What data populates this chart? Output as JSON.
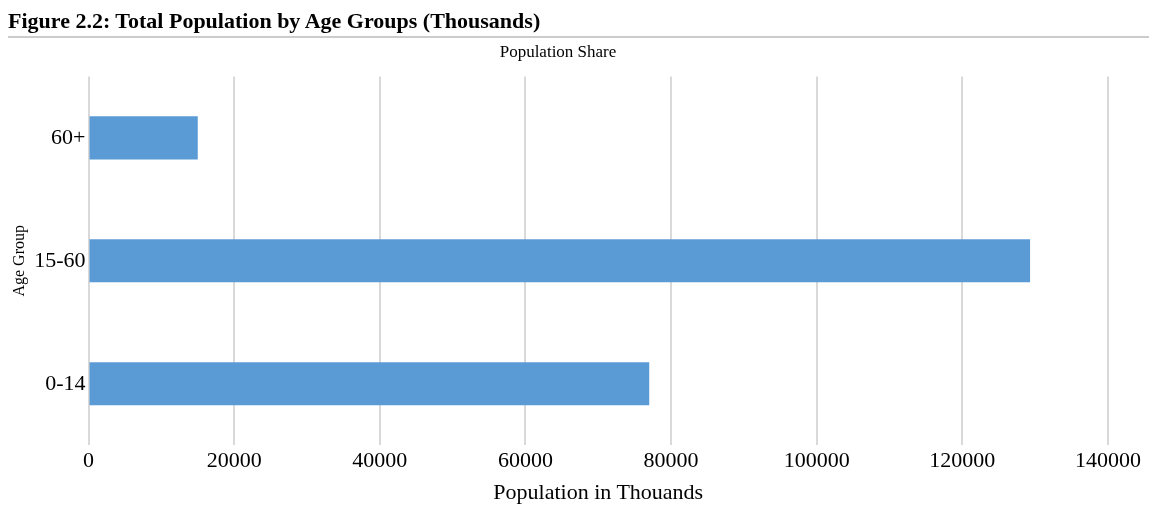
{
  "chart_data": {
    "type": "bar",
    "orientation": "horizontal",
    "title": "Figure 2.2: Total Population by Age Groups (Thousands)",
    "subtitle": "Population Share",
    "xlabel": "Population in Thouands",
    "ylabel": "Age Group",
    "categories": [
      "60+",
      "15-60",
      "0-14"
    ],
    "values": [
      15000,
      129300,
      77000
    ],
    "color": "#5b9bd5",
    "xlim": [
      0,
      140000
    ],
    "xticks": [
      0,
      20000,
      40000,
      60000,
      80000,
      100000,
      120000,
      140000
    ],
    "grid": "x"
  }
}
